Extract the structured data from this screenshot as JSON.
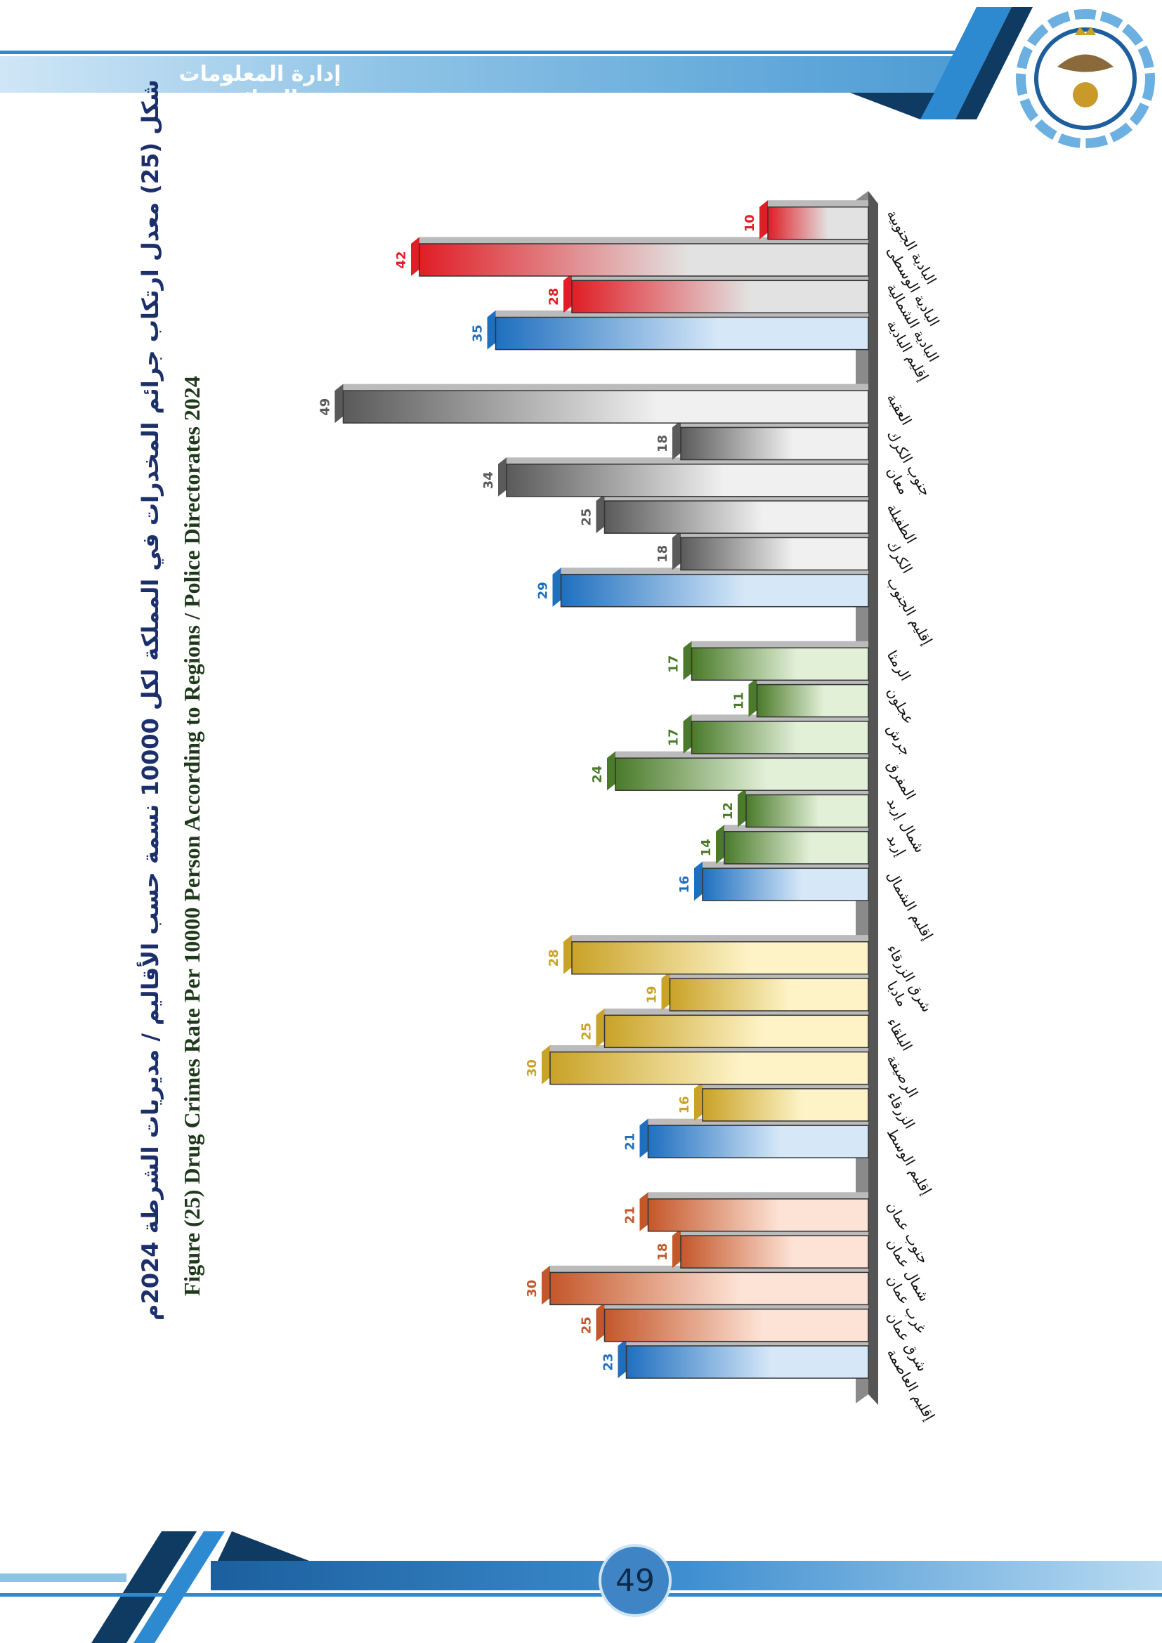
{
  "header": {
    "title": "إدارة المعلومات الجنائية"
  },
  "footer": {
    "page_number": "49"
  },
  "colors": {
    "region": "#1f6fbf",
    "capital": "#c4572a",
    "central": "#c9a227",
    "north": "#4a7a2a",
    "south": "#5a5a5a",
    "badia": "#e01e25"
  },
  "chart_data": {
    "type": "bar",
    "orientation": "rotated-horizontal",
    "title": "شكل (25) معدل ارتكاب جرائم المخدرات في المملكة لكل 10000 نسمة حسب الأقاليم / مديريات الشرطة 2024م",
    "subtitle": "Figure (25) Drug Crimes Rate Per 10000 Person According to Regions / Police Directorates 2024",
    "xlabel": "",
    "ylabel": "",
    "ylim": [
      0,
      50
    ],
    "groups": [
      {
        "name": "capital",
        "bars": [
          {
            "label": "إقليم العاصمة",
            "value": 23,
            "kind": "region"
          },
          {
            "label": "شرق عمان",
            "value": 25,
            "kind": "capital"
          },
          {
            "label": "غرب عمان",
            "value": 30,
            "kind": "capital"
          },
          {
            "label": "شمال عمان",
            "value": 18,
            "kind": "capital"
          },
          {
            "label": "جنوب عمان",
            "value": 21,
            "kind": "capital"
          }
        ]
      },
      {
        "name": "central",
        "bars": [
          {
            "label": "إقليم الوسط",
            "value": 21,
            "kind": "region"
          },
          {
            "label": "الزرقاء",
            "value": 16,
            "kind": "central"
          },
          {
            "label": "الرصيفة",
            "value": 30,
            "kind": "central"
          },
          {
            "label": "البلقاء",
            "value": 25,
            "kind": "central"
          },
          {
            "label": "مادبا",
            "value": 19,
            "kind": "central"
          },
          {
            "label": "شرق الزرقاء",
            "value": 28,
            "kind": "central"
          }
        ]
      },
      {
        "name": "north",
        "bars": [
          {
            "label": "إقليم الشمال",
            "value": 16,
            "kind": "region"
          },
          {
            "label": "إربد",
            "value": 14,
            "kind": "north"
          },
          {
            "label": "شمال إربد",
            "value": 12,
            "kind": "north"
          },
          {
            "label": "المفرق",
            "value": 24,
            "kind": "north"
          },
          {
            "label": "جرش",
            "value": 17,
            "kind": "north"
          },
          {
            "label": "عجلون",
            "value": 11,
            "kind": "north"
          },
          {
            "label": "الرمثا",
            "value": 17,
            "kind": "north"
          }
        ]
      },
      {
        "name": "south",
        "bars": [
          {
            "label": "إقليم الجنوب",
            "value": 29,
            "kind": "region"
          },
          {
            "label": "الكرك",
            "value": 18,
            "kind": "south"
          },
          {
            "label": "الطفيلة",
            "value": 25,
            "kind": "south"
          },
          {
            "label": "معان",
            "value": 34,
            "kind": "south"
          },
          {
            "label": "جنوب الكرك",
            "value": 18,
            "kind": "south"
          },
          {
            "label": "العقبة",
            "value": 49,
            "kind": "south"
          }
        ]
      },
      {
        "name": "badia",
        "bars": [
          {
            "label": "إقليم البادية",
            "value": 35,
            "kind": "region"
          },
          {
            "label": "البادية الشمالية",
            "value": 28,
            "kind": "badia"
          },
          {
            "label": "البادية الوسطى",
            "value": 42,
            "kind": "badia"
          },
          {
            "label": "البادية الجنوبية",
            "value": 10,
            "kind": "badia"
          }
        ]
      }
    ]
  }
}
